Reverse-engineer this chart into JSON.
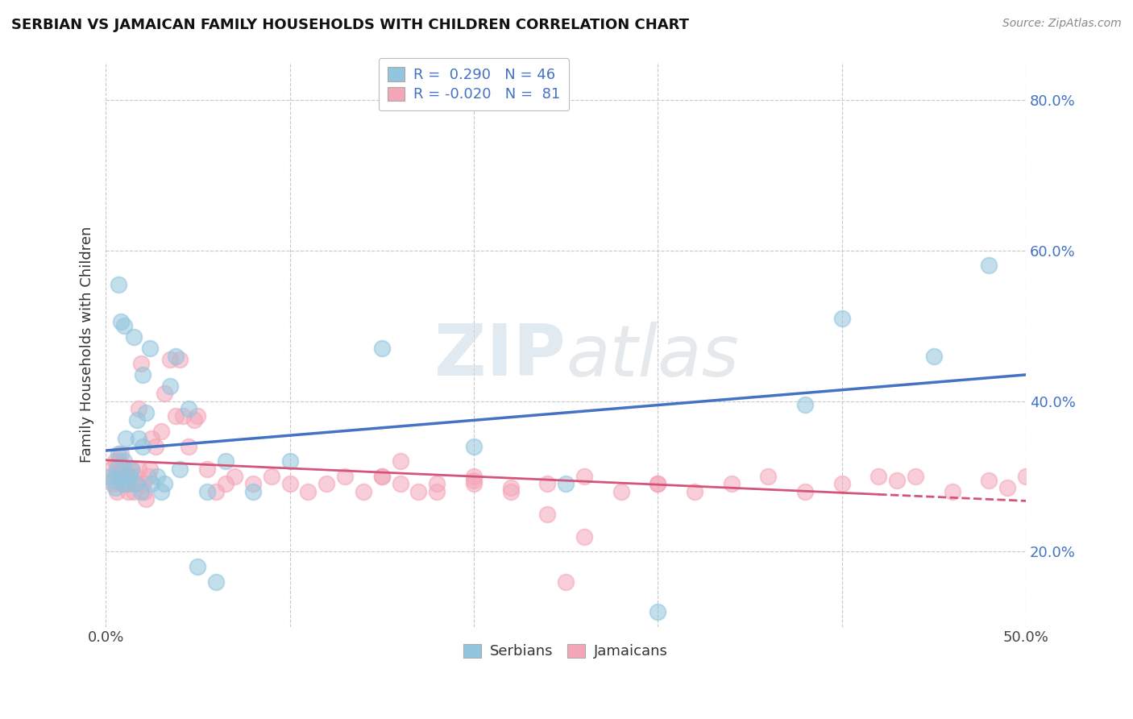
{
  "title": "SERBIAN VS JAMAICAN FAMILY HOUSEHOLDS WITH CHILDREN CORRELATION CHART",
  "source": "Source: ZipAtlas.com",
  "ylabel": "Family Households with Children",
  "xlim": [
    0.0,
    0.5
  ],
  "ylim": [
    0.1,
    0.85
  ],
  "ytick_values": [
    0.2,
    0.4,
    0.6,
    0.8
  ],
  "serbian_color": "#92C5DE",
  "jamaican_color": "#F4A6B8",
  "line_serbian_color": "#4472C4",
  "line_jamaican_color": "#D4547A",
  "background_color": "#FFFFFF",
  "grid_color": "#C8C8C8",
  "watermark_zip": "ZIP",
  "watermark_atlas": "atlas",
  "serbian_R": 0.29,
  "serbian_N": 46,
  "jamaican_R": -0.02,
  "jamaican_N": 81,
  "serbian_x": [
    0.003,
    0.004,
    0.005,
    0.006,
    0.007,
    0.007,
    0.008,
    0.008,
    0.009,
    0.01,
    0.01,
    0.011,
    0.012,
    0.013,
    0.014,
    0.015,
    0.016,
    0.017,
    0.018,
    0.019,
    0.02,
    0.02,
    0.022,
    0.024,
    0.025,
    0.028,
    0.03,
    0.032,
    0.035,
    0.038,
    0.04,
    0.045,
    0.05,
    0.055,
    0.06,
    0.065,
    0.08,
    0.1,
    0.15,
    0.2,
    0.25,
    0.3,
    0.38,
    0.4,
    0.45,
    0.48
  ],
  "serbian_y": [
    0.3,
    0.295,
    0.285,
    0.31,
    0.33,
    0.555,
    0.3,
    0.505,
    0.29,
    0.32,
    0.5,
    0.35,
    0.29,
    0.3,
    0.31,
    0.485,
    0.29,
    0.375,
    0.35,
    0.28,
    0.34,
    0.435,
    0.385,
    0.47,
    0.29,
    0.3,
    0.28,
    0.29,
    0.42,
    0.46,
    0.31,
    0.39,
    0.18,
    0.28,
    0.16,
    0.32,
    0.28,
    0.32,
    0.47,
    0.34,
    0.29,
    0.12,
    0.395,
    0.51,
    0.46,
    0.58
  ],
  "jamaican_x": [
    0.003,
    0.004,
    0.005,
    0.005,
    0.006,
    0.007,
    0.007,
    0.008,
    0.008,
    0.009,
    0.01,
    0.01,
    0.011,
    0.012,
    0.013,
    0.014,
    0.015,
    0.016,
    0.017,
    0.018,
    0.018,
    0.019,
    0.02,
    0.021,
    0.022,
    0.023,
    0.024,
    0.025,
    0.027,
    0.03,
    0.032,
    0.035,
    0.038,
    0.04,
    0.042,
    0.045,
    0.048,
    0.05,
    0.055,
    0.06,
    0.065,
    0.07,
    0.08,
    0.09,
    0.1,
    0.11,
    0.12,
    0.13,
    0.14,
    0.15,
    0.16,
    0.17,
    0.18,
    0.2,
    0.22,
    0.24,
    0.26,
    0.28,
    0.3,
    0.32,
    0.34,
    0.36,
    0.38,
    0.4,
    0.42,
    0.43,
    0.44,
    0.46,
    0.48,
    0.49,
    0.5,
    0.15,
    0.2,
    0.25,
    0.3,
    0.16,
    0.18,
    0.2,
    0.22,
    0.24,
    0.26
  ],
  "jamaican_y": [
    0.31,
    0.29,
    0.32,
    0.3,
    0.28,
    0.32,
    0.3,
    0.31,
    0.33,
    0.29,
    0.3,
    0.31,
    0.29,
    0.28,
    0.3,
    0.31,
    0.28,
    0.3,
    0.29,
    0.31,
    0.39,
    0.45,
    0.29,
    0.28,
    0.27,
    0.3,
    0.31,
    0.35,
    0.34,
    0.36,
    0.41,
    0.455,
    0.38,
    0.455,
    0.38,
    0.34,
    0.375,
    0.38,
    0.31,
    0.28,
    0.29,
    0.3,
    0.29,
    0.3,
    0.29,
    0.28,
    0.29,
    0.3,
    0.28,
    0.3,
    0.29,
    0.28,
    0.29,
    0.3,
    0.28,
    0.29,
    0.3,
    0.28,
    0.29,
    0.28,
    0.29,
    0.3,
    0.28,
    0.29,
    0.3,
    0.295,
    0.3,
    0.28,
    0.295,
    0.285,
    0.3,
    0.3,
    0.295,
    0.16,
    0.29,
    0.32,
    0.28,
    0.29,
    0.285,
    0.25,
    0.22
  ]
}
